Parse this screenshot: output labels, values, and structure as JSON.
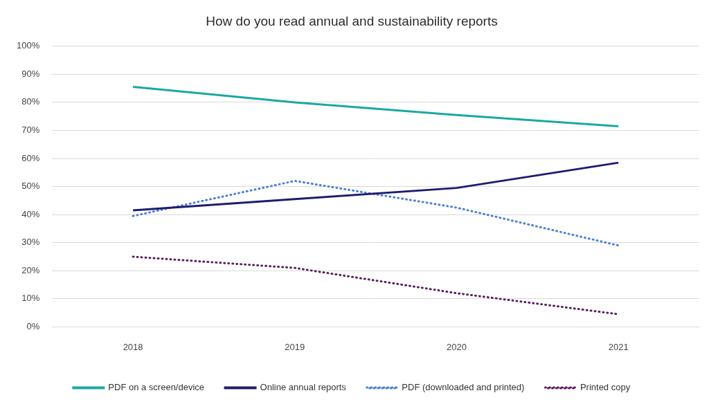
{
  "chart_data": {
    "type": "line",
    "title": "How do you read annual and sustainability reports",
    "categories": [
      "2018",
      "2019",
      "2020",
      "2021"
    ],
    "series": [
      {
        "name": "PDF on a screen/device",
        "color": "#1ba8a2",
        "line_style": "solid",
        "values": [
          85.5,
          80,
          75.5,
          71.5
        ]
      },
      {
        "name": "Online annual reports",
        "color": "#1e1c6e",
        "line_style": "solid",
        "values": [
          41.5,
          45.5,
          49.5,
          58.5
        ]
      },
      {
        "name": "PDF (downloaded and printed)",
        "color": "#4a7fd4",
        "line_style": "dotted",
        "values": [
          39.5,
          52,
          42.5,
          29
        ]
      },
      {
        "name": "Printed copy",
        "color": "#5a1e5e",
        "line_style": "dotted",
        "values": [
          25,
          21,
          12,
          4.5
        ]
      }
    ],
    "ylim": [
      0,
      100
    ],
    "yticks": [
      {
        "value": 0,
        "label": "0%"
      },
      {
        "value": 10,
        "label": "10%"
      },
      {
        "value": 20,
        "label": "20%"
      },
      {
        "value": 30,
        "label": "30%"
      },
      {
        "value": 40,
        "label": "40%"
      },
      {
        "value": 50,
        "label": "50%"
      },
      {
        "value": 60,
        "label": "60%"
      },
      {
        "value": 70,
        "label": "70%"
      },
      {
        "value": 80,
        "label": "80%"
      },
      {
        "value": 90,
        "label": "90%"
      },
      {
        "value": 100,
        "label": "100%"
      }
    ],
    "grid": true,
    "legend": "bottom"
  }
}
